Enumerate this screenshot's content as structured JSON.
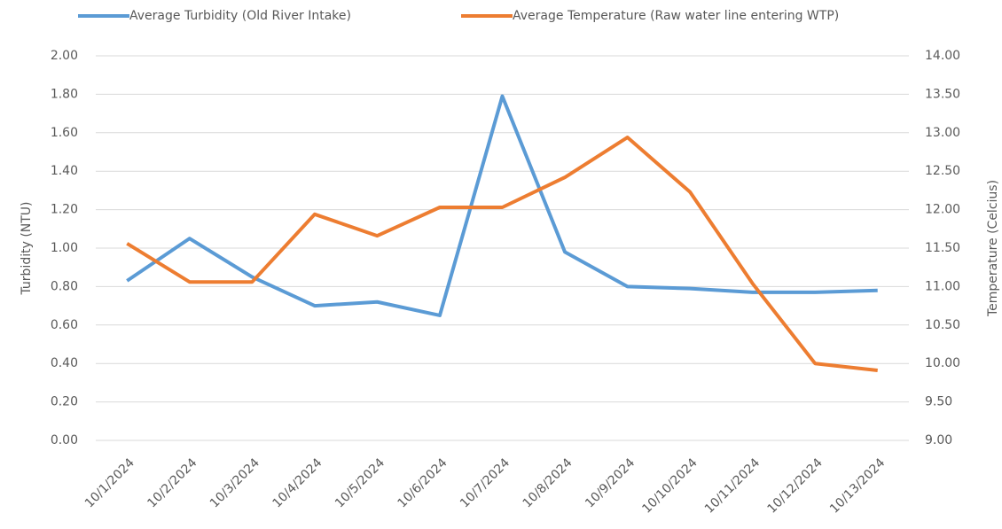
{
  "chart_data": {
    "type": "line",
    "categories": [
      "10/1/2024",
      "10/2/2024",
      "10/3/2024",
      "10/4/2024",
      "10/5/2024",
      "10/6/2024",
      "10/7/2024",
      "10/8/2024",
      "10/9/2024",
      "10/10/2024",
      "10/11/2024",
      "10/12/2024",
      "10/13/2024"
    ],
    "series": [
      {
        "name": "Average Turbidity (Old River Intake)",
        "color": "#5b9bd5",
        "values": [
          0.83,
          1.05,
          0.85,
          0.7,
          0.72,
          0.65,
          1.79,
          0.98,
          0.8,
          0.79,
          0.77,
          0.77,
          0.78
        ]
      },
      {
        "name": "Average Temperature (Raw water line entering WTP)",
        "color": "#ed7d31",
        "axis": "y2",
        "values": [
          11.56,
          11.06,
          11.06,
          11.94,
          11.66,
          12.03,
          12.03,
          12.42,
          12.94,
          12.23,
          11.04,
          10.0,
          9.91
        ]
      }
    ],
    "ylabel": "Turbidity (NTU)",
    "y2label": "Temperature (Celcius)",
    "ylim": [
      0,
      2
    ],
    "yticks": [
      {
        "value": 0,
        "label": "0.00"
      },
      {
        "value": 0.2,
        "label": "0.20"
      },
      {
        "value": 0.4,
        "label": "0.40"
      },
      {
        "value": 0.6,
        "label": "0.60"
      },
      {
        "value": 0.8,
        "label": "0.80"
      },
      {
        "value": 1,
        "label": "1.00"
      },
      {
        "value": 1.2,
        "label": "1.20"
      },
      {
        "value": 1.4,
        "label": "1.40"
      },
      {
        "value": 1.6,
        "label": "1.60"
      },
      {
        "value": 1.8,
        "label": "1.80"
      },
      {
        "value": 2,
        "label": "2.00"
      }
    ],
    "y2lim": [
      9,
      14
    ],
    "y2ticks": [
      {
        "value": 9,
        "label": "9.00"
      },
      {
        "value": 9.5,
        "label": "9.50"
      },
      {
        "value": 10,
        "label": "10.00"
      },
      {
        "value": 10.5,
        "label": "10.50"
      },
      {
        "value": 11,
        "label": "11.00"
      },
      {
        "value": 11.5,
        "label": "11.50"
      },
      {
        "value": 12,
        "label": "12.00"
      },
      {
        "value": 12.5,
        "label": "12.50"
      },
      {
        "value": 13,
        "label": "13.00"
      },
      {
        "value": 13.5,
        "label": "13.50"
      },
      {
        "value": 14,
        "label": "14.00"
      }
    ],
    "grid": true,
    "legend": "top"
  }
}
